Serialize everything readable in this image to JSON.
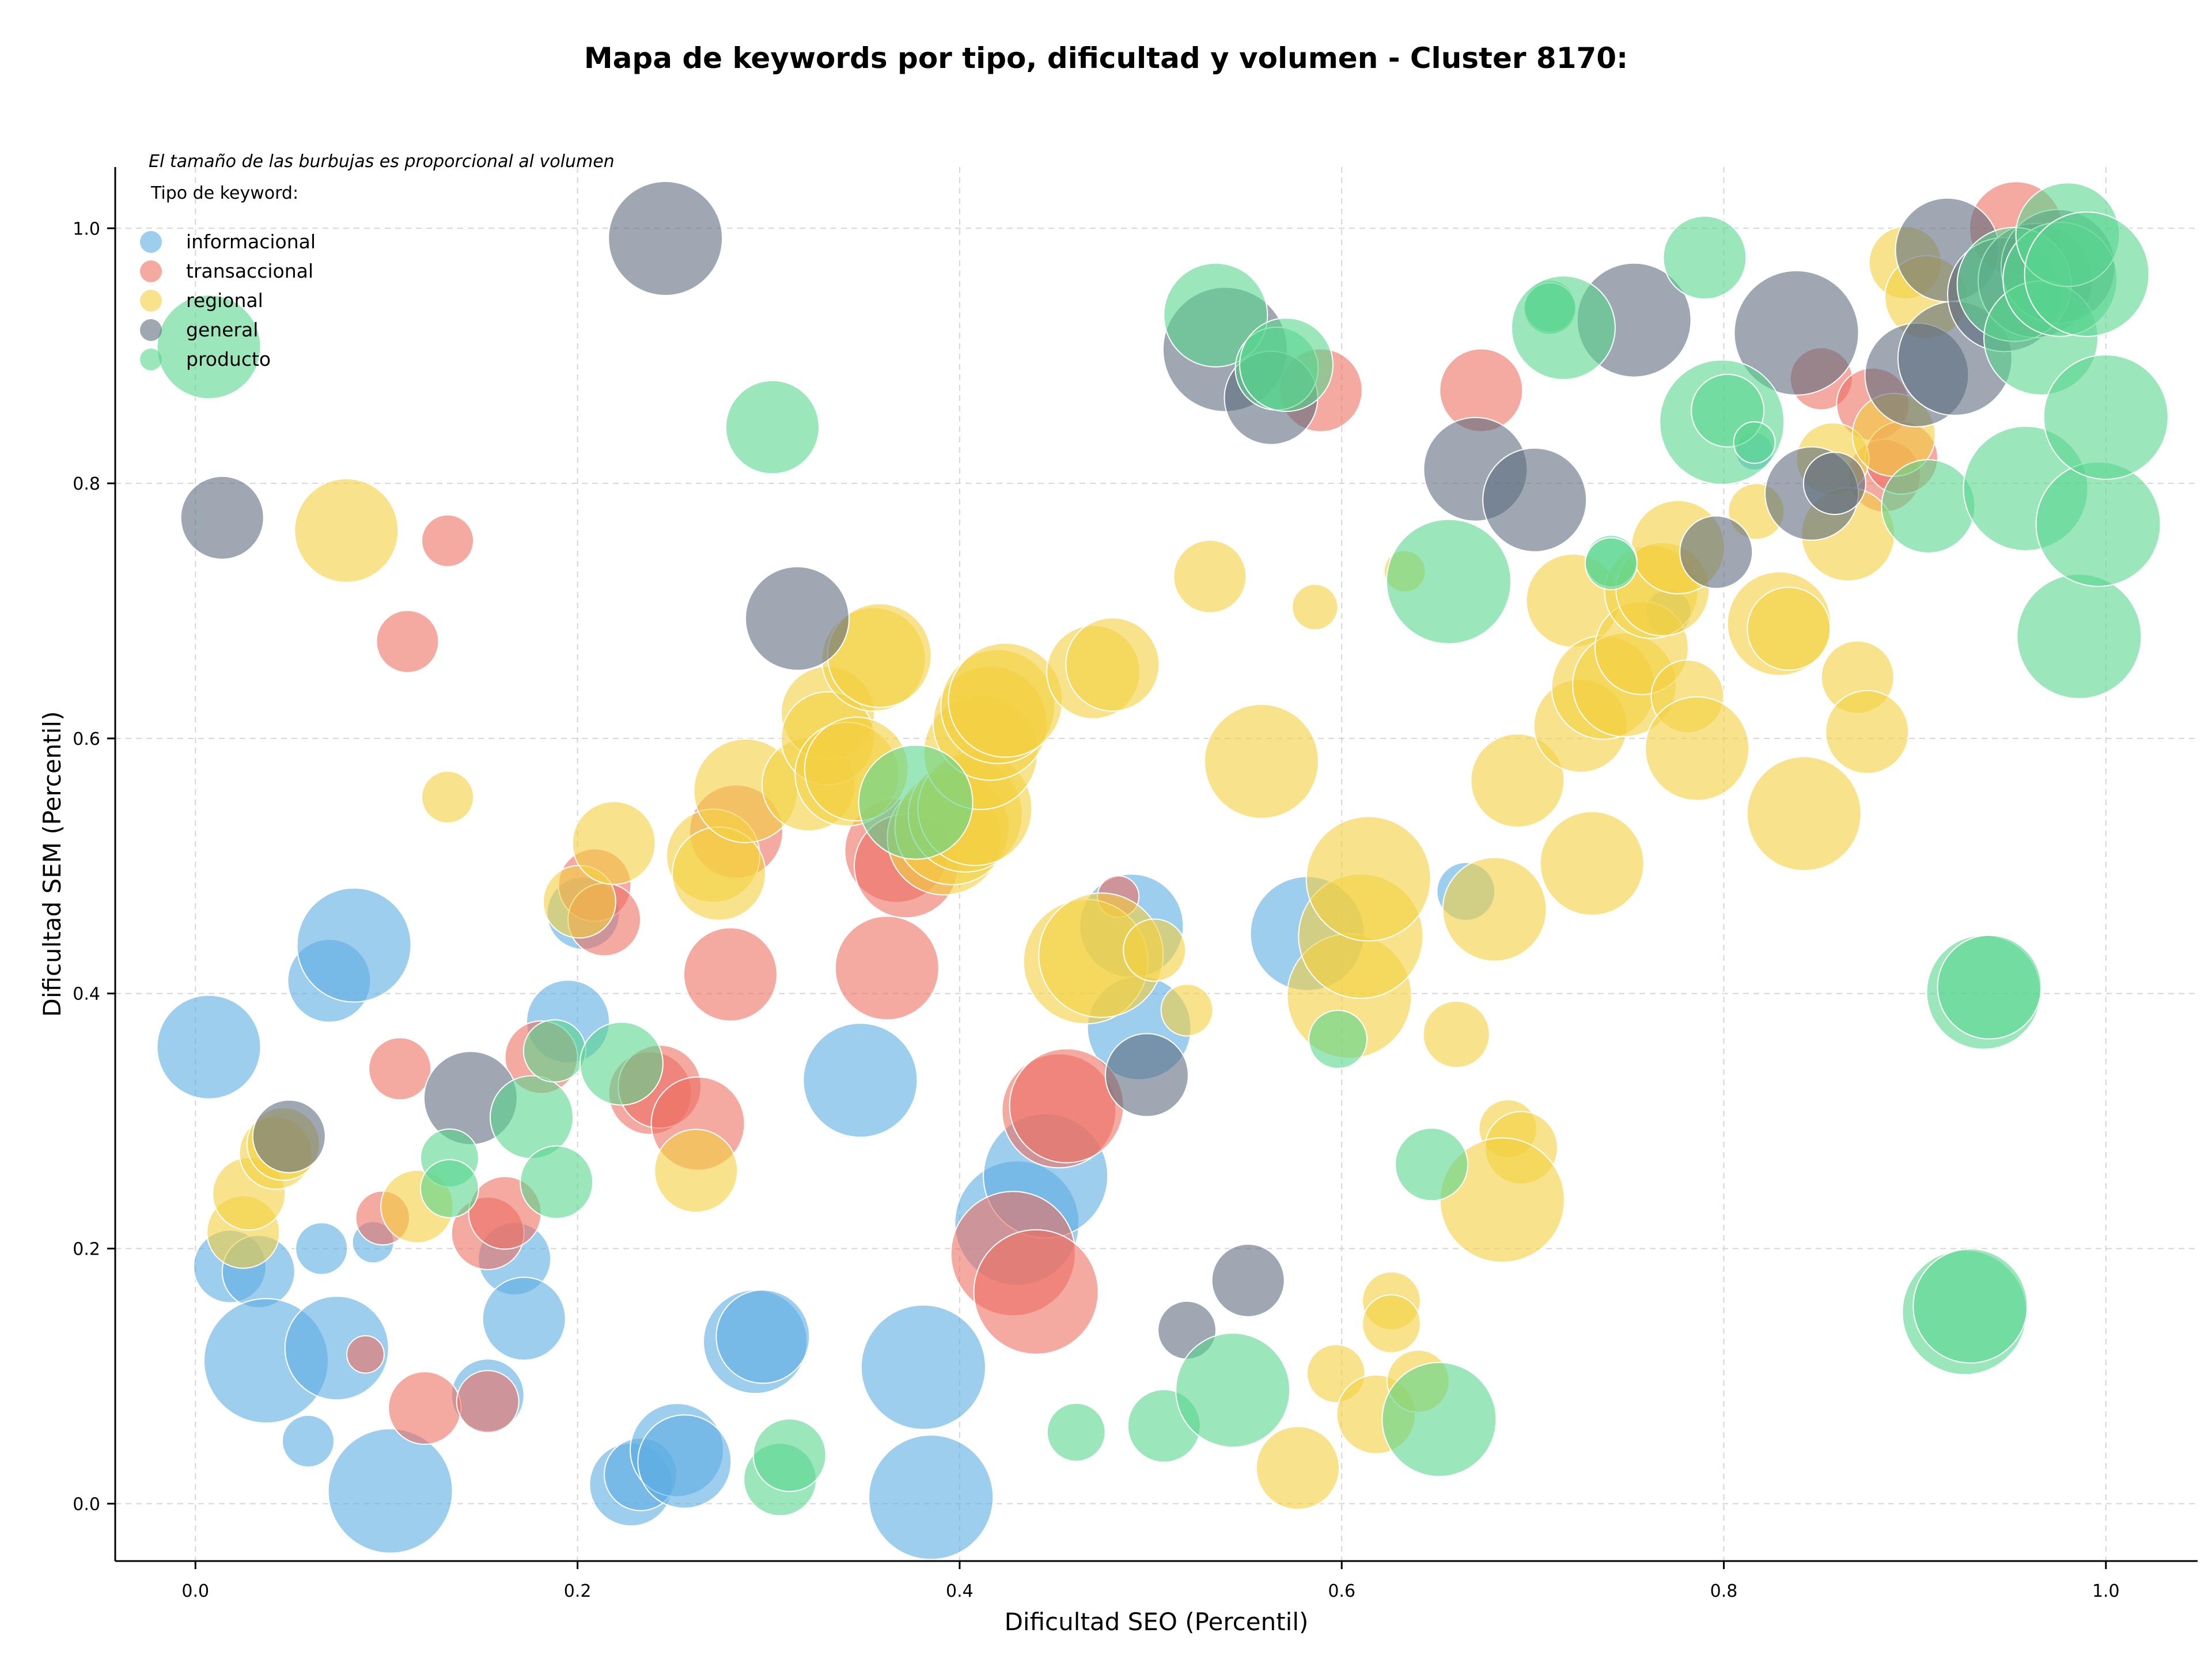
{
  "chart_data": {
    "type": "scatter",
    "title": "Mapa de keywords por tipo, dificultad y volumen - Cluster 8170:",
    "xlabel": "Dificultad SEO (Percentil)",
    "ylabel": "Dificultad SEM (Percentil)",
    "xlim": [
      -0.042,
      1.048
    ],
    "ylim": [
      -0.045,
      1.048
    ],
    "xticks": [
      "0.0",
      "0.2",
      "0.4",
      "0.6",
      "0.8",
      "1.0"
    ],
    "yticks": [
      "0.0",
      "0.2",
      "0.4",
      "0.6",
      "0.8",
      "1.0"
    ],
    "grid": true,
    "legend_note": "El tamaño de las burbujas es proporcional al volumen",
    "legend_title": "Tipo de keyword:",
    "legend_placement": "top-left",
    "series": [
      {
        "name": "informacional",
        "color": "#5DADE2",
        "points": [
          [
            0.007,
            0.358,
            5
          ],
          [
            0.018,
            0.186,
            3.5
          ],
          [
            0.033,
            0.182,
            3.5
          ],
          [
            0.037,
            0.112,
            6
          ],
          [
            0.059,
            0.049,
            2.5
          ],
          [
            0.066,
            0.2,
            2.5
          ],
          [
            0.07,
            0.41,
            4
          ],
          [
            0.074,
            0.122,
            5
          ],
          [
            0.083,
            0.438,
            5.5
          ],
          [
            0.093,
            0.205,
            2
          ],
          [
            0.102,
            0.01,
            6
          ],
          [
            0.153,
            0.085,
            3.5
          ],
          [
            0.167,
            0.192,
            3.5
          ],
          [
            0.172,
            0.145,
            4
          ],
          [
            0.195,
            0.378,
            4
          ],
          [
            0.203,
            0.463,
            3.5
          ],
          [
            0.228,
            0.015,
            4
          ],
          [
            0.233,
            0.023,
            3.5
          ],
          [
            0.252,
            0.042,
            4.5
          ],
          [
            0.256,
            0.033,
            4.5
          ],
          [
            0.293,
            0.127,
            5
          ],
          [
            0.297,
            0.131,
            4.5
          ],
          [
            0.348,
            0.332,
            5.5
          ],
          [
            0.381,
            0.107,
            6
          ],
          [
            0.385,
            0.005,
            6
          ],
          [
            0.43,
            0.22,
            6
          ],
          [
            0.445,
            0.257,
            6
          ],
          [
            0.49,
            0.453,
            5
          ],
          [
            0.494,
            0.373,
            5
          ],
          [
            0.582,
            0.447,
            5.5
          ],
          [
            0.665,
            0.48,
            2.8
          ],
          [
            0.771,
            0.699,
            2.2
          ],
          [
            0.816,
            0.825,
            1.8
          ]
        ]
      },
      {
        "name": "transaccional",
        "color": "#EC7063",
        "points": [
          [
            0.089,
            0.117,
            1.8
          ],
          [
            0.098,
            0.224,
            2.6
          ],
          [
            0.107,
            0.341,
            3
          ],
          [
            0.111,
            0.676,
            3
          ],
          [
            0.12,
            0.075,
            3.5
          ],
          [
            0.132,
            0.755,
            2.5
          ],
          [
            0.153,
            0.212,
            3.5
          ],
          [
            0.153,
            0.08,
            3
          ],
          [
            0.162,
            0.228,
            3.5
          ],
          [
            0.181,
            0.35,
            3.5
          ],
          [
            0.209,
            0.485,
            3.5
          ],
          [
            0.214,
            0.458,
            3.5
          ],
          [
            0.238,
            0.322,
            4
          ],
          [
            0.243,
            0.327,
            4
          ],
          [
            0.263,
            0.298,
            4.5
          ],
          [
            0.28,
            0.415,
            4.5
          ],
          [
            0.283,
            0.527,
            4.5
          ],
          [
            0.367,
            0.512,
            5
          ],
          [
            0.372,
            0.5,
            5
          ],
          [
            0.362,
            0.42,
            5
          ],
          [
            0.428,
            0.196,
            6
          ],
          [
            0.44,
            0.166,
            6
          ],
          [
            0.452,
            0.308,
            5.5
          ],
          [
            0.456,
            0.312,
            5.5
          ],
          [
            0.483,
            0.476,
            2
          ],
          [
            0.589,
            0.873,
            4
          ],
          [
            0.673,
            0.873,
            4
          ],
          [
            0.851,
            0.882,
            3
          ],
          [
            0.878,
            0.862,
            3.5
          ],
          [
            0.884,
            0.806,
            3.5
          ],
          [
            0.893,
            0.82,
            3.5
          ],
          [
            0.953,
            1.0,
            4.5
          ]
        ]
      },
      {
        "name": "regional",
        "color": "#F4D03F",
        "points": [
          [
            0.025,
            0.213,
            3.5
          ],
          [
            0.028,
            0.243,
            3.5
          ],
          [
            0.042,
            0.275,
            3.5
          ],
          [
            0.046,
            0.282,
            3.5
          ],
          [
            0.079,
            0.763,
            5
          ],
          [
            0.116,
            0.233,
            3.5
          ],
          [
            0.132,
            0.554,
            2.5
          ],
          [
            0.201,
            0.472,
            3.5
          ],
          [
            0.219,
            0.518,
            4
          ],
          [
            0.262,
            0.261,
            4
          ],
          [
            0.271,
            0.508,
            4.5
          ],
          [
            0.274,
            0.494,
            4.5
          ],
          [
            0.288,
            0.559,
            5
          ],
          [
            0.321,
            0.564,
            4.5
          ],
          [
            0.331,
            0.62,
            4.5
          ],
          [
            0.331,
            0.6,
            4.5
          ],
          [
            0.341,
            0.572,
            5
          ],
          [
            0.346,
            0.576,
            5
          ],
          [
            0.355,
            0.662,
            5
          ],
          [
            0.358,
            0.665,
            5
          ],
          [
            0.392,
            0.522,
            5.5
          ],
          [
            0.396,
            0.53,
            5.5
          ],
          [
            0.403,
            0.54,
            5.5
          ],
          [
            0.408,
            0.545,
            5.5
          ],
          [
            0.411,
            0.589,
            5.5
          ],
          [
            0.416,
            0.612,
            5.5
          ],
          [
            0.42,
            0.625,
            5.5
          ],
          [
            0.424,
            0.63,
            5.5
          ],
          [
            0.466,
            0.425,
            6
          ],
          [
            0.474,
            0.43,
            6
          ],
          [
            0.47,
            0.652,
            4.5
          ],
          [
            0.48,
            0.658,
            4.5
          ],
          [
            0.502,
            0.434,
            3
          ],
          [
            0.519,
            0.387,
            2.5
          ],
          [
            0.531,
            0.727,
            3.5
          ],
          [
            0.558,
            0.582,
            5.5
          ],
          [
            0.586,
            0.703,
            2.2
          ],
          [
            0.597,
            0.102,
            2.8
          ],
          [
            0.604,
            0.398,
            6
          ],
          [
            0.61,
            0.445,
            6
          ],
          [
            0.614,
            0.49,
            6
          ],
          [
            0.618,
            0.07,
            3.8
          ],
          [
            0.626,
            0.159,
            2.8
          ],
          [
            0.626,
            0.141,
            2.8
          ],
          [
            0.633,
            0.731,
            2
          ],
          [
            0.64,
            0.096,
            3
          ],
          [
            0.66,
            0.368,
            3.2
          ],
          [
            0.68,
            0.466,
            5
          ],
          [
            0.687,
            0.294,
            2.8
          ],
          [
            0.694,
            0.279,
            3.5
          ],
          [
            0.684,
            0.238,
            6
          ],
          [
            0.692,
            0.567,
            4.5
          ],
          [
            0.721,
            0.708,
            4.5
          ],
          [
            0.725,
            0.61,
            4.5
          ],
          [
            0.731,
            0.502,
            5
          ],
          [
            0.737,
            0.64,
            5
          ],
          [
            0.748,
            0.642,
            5
          ],
          [
            0.757,
            0.671,
            4.5
          ],
          [
            0.762,
            0.715,
            4.5
          ],
          [
            0.768,
            0.717,
            4.5
          ],
          [
            0.776,
            0.75,
            4.5
          ],
          [
            0.781,
            0.633,
            3.5
          ],
          [
            0.786,
            0.592,
            5
          ],
          [
            0.817,
            0.778,
            2.7
          ],
          [
            0.829,
            0.69,
            5
          ],
          [
            0.834,
            0.686,
            4
          ],
          [
            0.842,
            0.541,
            5.5
          ],
          [
            0.857,
            0.819,
            3.5
          ],
          [
            0.865,
            0.76,
            4.5
          ],
          [
            0.87,
            0.648,
            3.5
          ],
          [
            0.875,
            0.605,
            4
          ],
          [
            0.889,
            0.838,
            4
          ],
          [
            0.895,
            0.973,
            3.5
          ],
          [
            0.906,
            0.946,
            4
          ],
          [
            0.577,
            0.028,
            4
          ]
        ]
      },
      {
        "name": "general",
        "color": "#5D6D7E",
        "points": [
          [
            0.014,
            0.773,
            4
          ],
          [
            0.049,
            0.288,
            3.5
          ],
          [
            0.144,
            0.318,
            4.5
          ],
          [
            0.246,
            0.992,
            5.5
          ],
          [
            0.315,
            0.694,
            5
          ],
          [
            0.498,
            0.336,
            4
          ],
          [
            0.519,
            0.136,
            2.8
          ],
          [
            0.551,
            0.175,
            3.5
          ],
          [
            0.539,
            0.905,
            6
          ],
          [
            0.563,
            0.867,
            4.5
          ],
          [
            0.67,
            0.811,
            5
          ],
          [
            0.701,
            0.787,
            5
          ],
          [
            0.753,
            0.928,
            5.5
          ],
          [
            0.796,
            0.746,
            3.5
          ],
          [
            0.838,
            0.918,
            6
          ],
          [
            0.846,
            0.792,
            4.5
          ],
          [
            0.858,
            0.8,
            3
          ],
          [
            0.901,
            0.885,
            5
          ],
          [
            0.917,
            0.983,
            5
          ],
          [
            0.921,
            0.898,
            5.5
          ],
          [
            0.947,
            0.948,
            5.5
          ],
          [
            0.963,
            0.959,
            5.5
          ],
          [
            0.975,
            0.97,
            5.5
          ]
        ]
      },
      {
        "name": "producto",
        "color": "#58D68D",
        "points": [
          [
            0.007,
            0.907,
            5
          ],
          [
            0.133,
            0.271,
            2.8
          ],
          [
            0.133,
            0.247,
            2.8
          ],
          [
            0.176,
            0.303,
            4
          ],
          [
            0.188,
            0.355,
            3
          ],
          [
            0.189,
            0.252,
            3.5
          ],
          [
            0.223,
            0.345,
            4
          ],
          [
            0.302,
            0.844,
            4.5
          ],
          [
            0.306,
            0.019,
            3.5
          ],
          [
            0.311,
            0.038,
            3.5
          ],
          [
            0.377,
            0.55,
            5.5
          ],
          [
            0.461,
            0.056,
            2.8
          ],
          [
            0.507,
            0.061,
            3.5
          ],
          [
            0.534,
            0.932,
            5
          ],
          [
            0.543,
            0.089,
            5.5
          ],
          [
            0.566,
            0.89,
            4
          ],
          [
            0.571,
            0.893,
            4.5
          ],
          [
            0.598,
            0.364,
            2.8
          ],
          [
            0.647,
            0.266,
            3.5
          ],
          [
            0.651,
            0.066,
            5.5
          ],
          [
            0.656,
            0.723,
            6
          ],
          [
            0.709,
            0.939,
            2.5
          ],
          [
            0.709,
            0.937,
            2.5
          ],
          [
            0.716,
            0.922,
            5
          ],
          [
            0.741,
            0.739,
            2.5
          ],
          [
            0.741,
            0.737,
            2.5
          ],
          [
            0.79,
            0.977,
            4
          ],
          [
            0.799,
            0.848,
            6
          ],
          [
            0.802,
            0.857,
            3.5
          ],
          [
            0.816,
            0.832,
            2
          ],
          [
            0.907,
            0.782,
            4.5
          ],
          [
            0.926,
            0.15,
            6
          ],
          [
            0.929,
            0.155,
            5.5
          ],
          [
            0.936,
            0.401,
            5.5
          ],
          [
            0.939,
            0.405,
            5
          ],
          [
            0.952,
            0.956,
            5.5
          ],
          [
            0.958,
            0.796,
            6
          ],
          [
            0.966,
            0.914,
            5.5
          ],
          [
            0.976,
            0.96,
            5.5
          ],
          [
            0.98,
            0.995,
            5
          ],
          [
            0.986,
            0.68,
            6
          ],
          [
            0.99,
            0.964,
            6
          ],
          [
            0.996,
            0.768,
            6
          ],
          [
            1.0,
            0.852,
            6
          ]
        ]
      }
    ]
  }
}
